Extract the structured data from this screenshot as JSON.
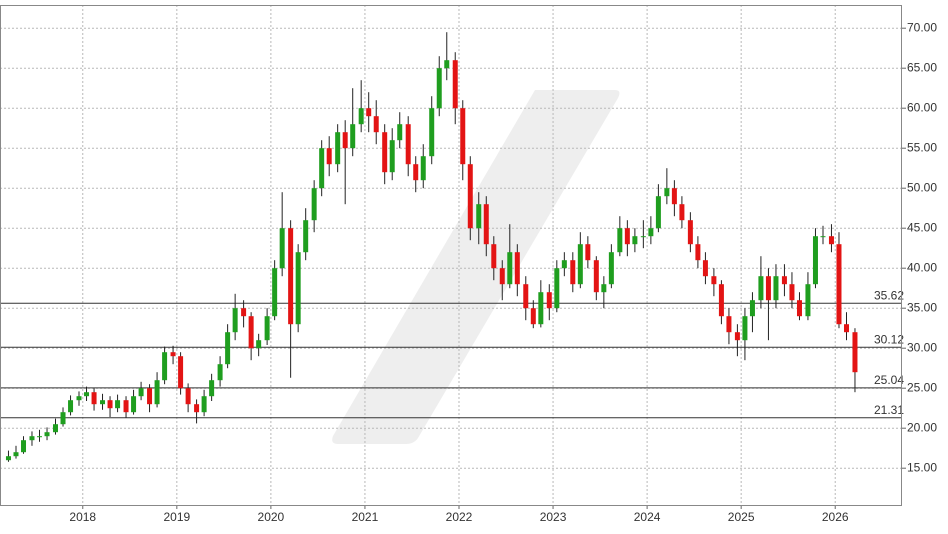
{
  "chart_data": {
    "type": "candlestick",
    "x": [
      2017.21,
      2017.29,
      2017.37,
      2017.46,
      2017.54,
      2017.62,
      2017.71,
      2017.79,
      2017.87,
      2017.96,
      2018.04,
      2018.12,
      2018.21,
      2018.29,
      2018.37,
      2018.46,
      2018.54,
      2018.62,
      2018.71,
      2018.79,
      2018.87,
      2018.96,
      2019.04,
      2019.12,
      2019.21,
      2019.29,
      2019.37,
      2019.46,
      2019.54,
      2019.62,
      2019.71,
      2019.79,
      2019.87,
      2019.96,
      2020.04,
      2020.12,
      2020.21,
      2020.29,
      2020.37,
      2020.46,
      2020.54,
      2020.62,
      2020.71,
      2020.79,
      2020.87,
      2020.96,
      2021.04,
      2021.12,
      2021.21,
      2021.29,
      2021.37,
      2021.46,
      2021.54,
      2021.62,
      2021.71,
      2021.79,
      2021.87,
      2021.96,
      2022.04,
      2022.12,
      2022.21,
      2022.29,
      2022.37,
      2022.46,
      2022.54,
      2022.62,
      2022.71,
      2022.79,
      2022.87,
      2022.96,
      2023.04,
      2023.12,
      2023.21,
      2023.29,
      2023.37,
      2023.46,
      2023.54,
      2023.62,
      2023.71,
      2023.79,
      2023.87,
      2023.96,
      2024.04,
      2024.12,
      2024.21,
      2024.29,
      2024.37,
      2024.46,
      2024.54,
      2024.62,
      2024.71,
      2024.79,
      2024.87,
      2024.96,
      2025.04,
      2025.12,
      2025.21,
      2025.29,
      2025.37,
      2025.46,
      2025.54,
      2025.62,
      2025.71,
      2025.79,
      2025.87,
      2025.96,
      2026.04,
      2026.12,
      2026.21
    ],
    "open": [
      16,
      16.5,
      17,
      18.5,
      19,
      19,
      19.5,
      20.5,
      22,
      23.5,
      24,
      24.5,
      23,
      23.5,
      22.5,
      23.5,
      22,
      24,
      25,
      23,
      26,
      29.5,
      29,
      25,
      23,
      22,
      24,
      26,
      28,
      32,
      35,
      34,
      30,
      31,
      34,
      40,
      45,
      33,
      42,
      46,
      50,
      55,
      53,
      57,
      55,
      58,
      60,
      59,
      57,
      52,
      56,
      58,
      53,
      51,
      54,
      60,
      65,
      66,
      60,
      53,
      45,
      48,
      43,
      40,
      38,
      42,
      38,
      35,
      33,
      37,
      35,
      40,
      41,
      38,
      43,
      41,
      37,
      38,
      42,
      45,
      43,
      44,
      44,
      45,
      49,
      50,
      48,
      46,
      43,
      41,
      39,
      38,
      34,
      32,
      31,
      34,
      36,
      39,
      36,
      39,
      38,
      36,
      34,
      38,
      44,
      44,
      43,
      33,
      32
    ],
    "high": [
      17.2,
      17.8,
      19,
      19.6,
      19.8,
      20.1,
      21.2,
      22.6,
      24.1,
      24.6,
      25.2,
      25,
      24.3,
      24,
      24.2,
      24,
      24.8,
      25.8,
      25.5,
      27,
      30.2,
      30.3,
      29.5,
      25.6,
      23.6,
      24.8,
      26.8,
      29,
      33,
      36.8,
      36,
      34.5,
      31.8,
      35,
      41,
      49.5,
      46,
      43,
      47.5,
      51,
      56,
      56.5,
      58,
      58.5,
      62.5,
      63.5,
      62,
      61,
      58,
      57.5,
      59.5,
      59,
      54,
      55.5,
      61.5,
      66.5,
      69.5,
      67,
      61,
      54,
      49.5,
      49,
      44,
      41,
      45.5,
      43,
      39,
      36,
      38.5,
      38,
      41,
      42,
      42,
      44.5,
      44,
      41.5,
      39,
      43,
      46.5,
      46,
      45,
      46,
      46.5,
      50.5,
      52.5,
      51,
      49,
      47,
      44,
      42,
      40,
      38.5,
      35,
      33,
      35,
      37,
      41.5,
      40,
      40.5,
      40.5,
      39.5,
      37,
      39.5,
      45,
      45.3,
      45.5,
      44.5,
      34.5,
      32.5
    ],
    "low": [
      15.8,
      16.2,
      16.8,
      17.8,
      18.3,
      18.5,
      19.2,
      20.2,
      21.6,
      22.8,
      23.4,
      22.2,
      22.3,
      21.4,
      22,
      21.3,
      21.7,
      23.5,
      22,
      22.6,
      25.5,
      28,
      24.2,
      22,
      20.6,
      21.5,
      23.4,
      25.2,
      27.5,
      31,
      32.6,
      28.5,
      29,
      30.4,
      33.5,
      39,
      26.3,
      32,
      41,
      44.5,
      49,
      51.5,
      52,
      48,
      54,
      57,
      57,
      55.5,
      50.5,
      51,
      55,
      51.5,
      49.5,
      50,
      53,
      59,
      63.5,
      58,
      51,
      43.5,
      43,
      41.5,
      38.5,
      36,
      37.5,
      36.5,
      33.5,
      32.5,
      32.6,
      33.5,
      34.5,
      39,
      37,
      37.5,
      40,
      36,
      35,
      37.5,
      41.5,
      41.5,
      42,
      42.5,
      43,
      44.5,
      48,
      46.5,
      45,
      42,
      40,
      38,
      36.5,
      33,
      30.5,
      29,
      28.5,
      32,
      35,
      31,
      35,
      36.5,
      35,
      33.5,
      33.5,
      37.5,
      43,
      42,
      32.5,
      31,
      24.5
    ],
    "close": [
      16.5,
      17,
      18.5,
      19,
      19,
      19.5,
      20.5,
      22,
      23.5,
      24,
      24.5,
      23,
      23.5,
      22.5,
      23.5,
      22,
      24,
      25,
      23,
      26,
      29.5,
      29,
      25,
      23,
      22,
      24,
      26,
      28,
      32,
      35,
      34,
      30,
      31,
      34,
      40,
      45,
      33,
      42,
      46,
      50,
      55,
      53,
      57,
      55,
      58,
      60,
      59,
      57,
      52,
      56,
      58,
      53,
      51,
      54,
      60,
      65,
      66,
      60,
      53,
      45,
      48,
      43,
      40,
      38,
      42,
      38,
      35,
      33,
      37,
      35,
      40,
      41,
      38,
      43,
      41,
      37,
      38,
      42,
      45,
      43,
      44,
      44,
      45,
      49,
      50,
      48,
      46,
      43,
      41,
      39,
      38,
      34,
      32,
      31,
      34,
      36,
      39,
      36,
      39,
      38,
      36,
      34,
      38,
      44,
      44,
      43,
      33,
      32,
      27
    ],
    "up_color": "#1f9e1f",
    "down_color": "#e31414",
    "xlim": [
      2017.12,
      2026.71
    ],
    "xticks": [
      2018,
      2019,
      2020,
      2021,
      2022,
      2023,
      2024,
      2025,
      2026
    ],
    "ylim": [
      10.4,
      72.9
    ],
    "yticks": [
      {
        "value": 15,
        "label": "15.00"
      },
      {
        "value": 20,
        "label": "20.00"
      },
      {
        "value": 25,
        "label": "25.00"
      },
      {
        "value": 30,
        "label": "30.00"
      },
      {
        "value": 35,
        "label": "35.00"
      },
      {
        "value": 40,
        "label": "40.00"
      },
      {
        "value": 45,
        "label": "45.00"
      },
      {
        "value": 50,
        "label": "50.00"
      },
      {
        "value": 55,
        "label": "55.00"
      },
      {
        "value": 60,
        "label": "60.00"
      },
      {
        "value": 65,
        "label": "65.00"
      },
      {
        "value": 70,
        "label": "70.00"
      }
    ],
    "reference_lines": [
      35.62,
      30.12,
      25.04,
      21.31
    ],
    "grid": true
  }
}
